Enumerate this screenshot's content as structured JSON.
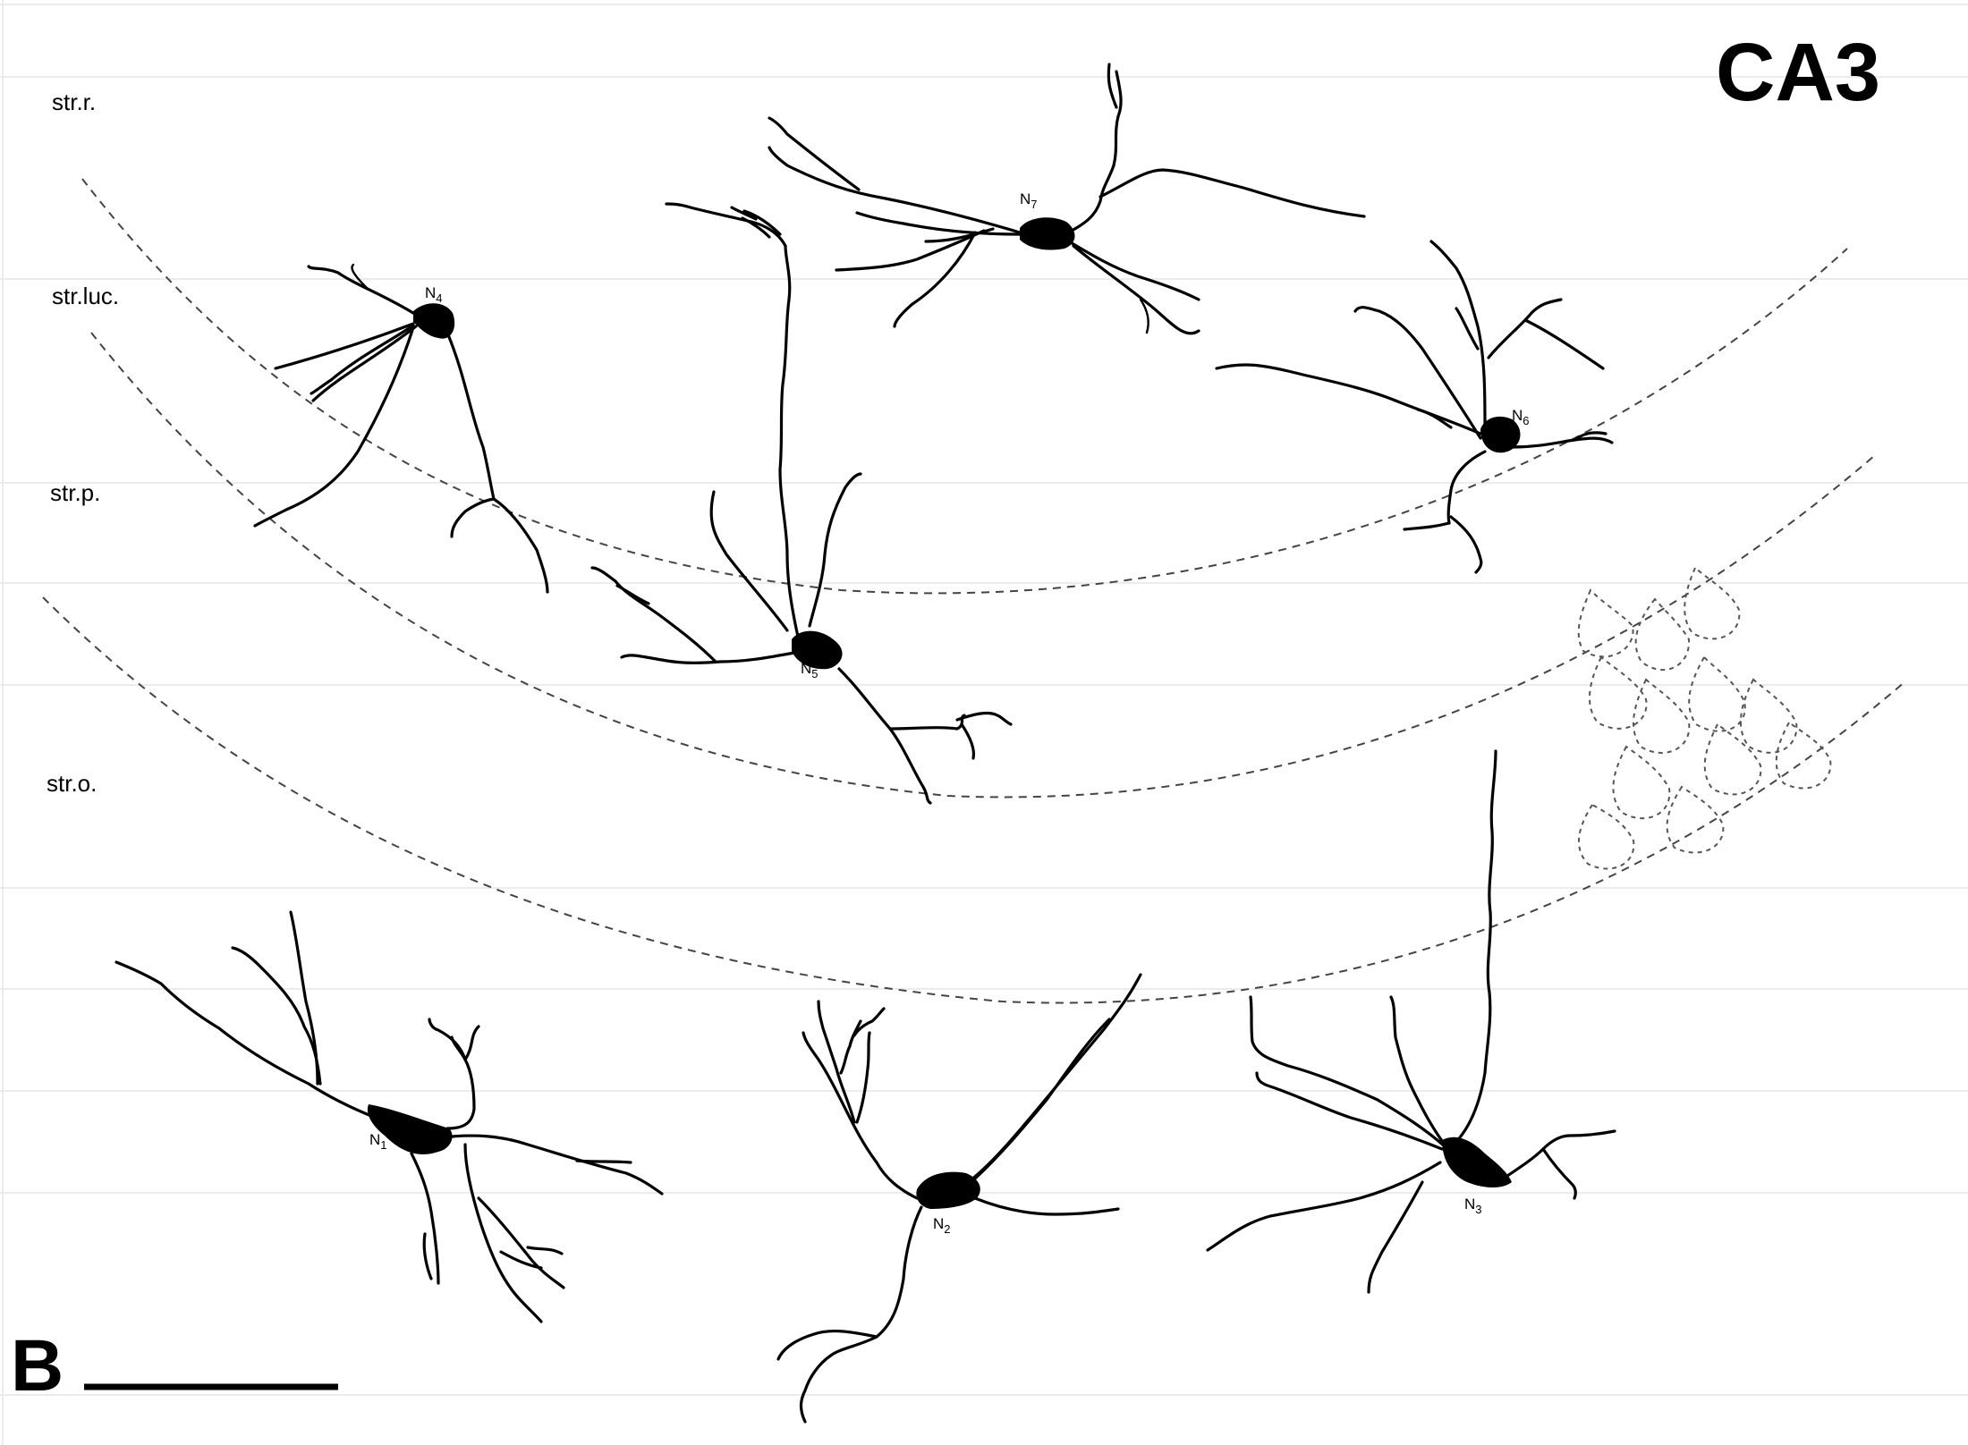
{
  "figure": {
    "region": "CA3",
    "panel": "B",
    "layers": [
      {
        "id": "rr",
        "label": "str.r."
      },
      {
        "id": "luc",
        "label": "str.luc."
      },
      {
        "id": "p",
        "label": "str.p."
      },
      {
        "id": "o",
        "label": "str.o."
      }
    ],
    "neurons": [
      {
        "id": "n1",
        "prefix": "N",
        "sub": "1"
      },
      {
        "id": "n2",
        "prefix": "N",
        "sub": "2"
      },
      {
        "id": "n3",
        "prefix": "N",
        "sub": "3"
      },
      {
        "id": "n4",
        "prefix": "N",
        "sub": "4"
      },
      {
        "id": "n5",
        "prefix": "N",
        "sub": "5"
      },
      {
        "id": "n6",
        "prefix": "N",
        "sub": "6"
      },
      {
        "id": "n7",
        "prefix": "N",
        "sub": "7"
      }
    ]
  }
}
